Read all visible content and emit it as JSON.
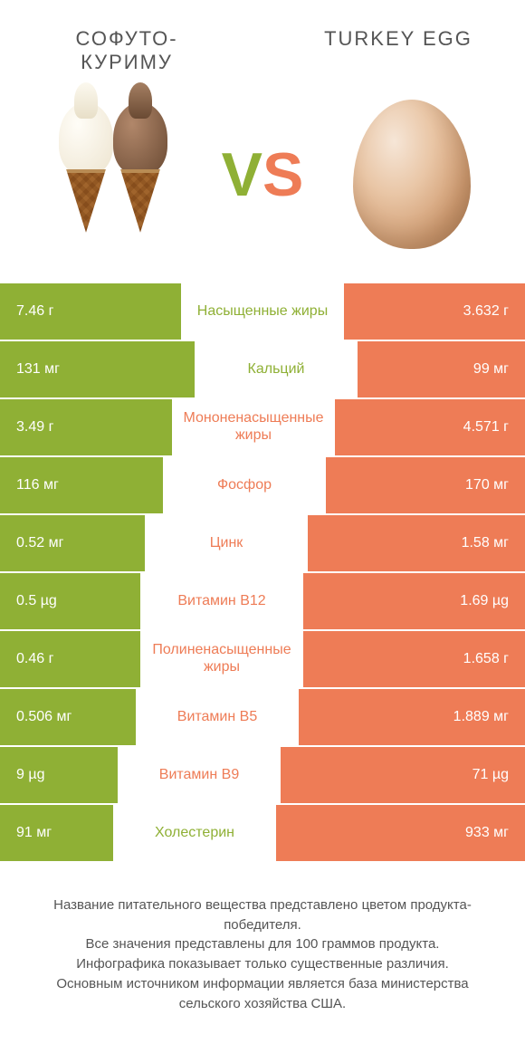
{
  "colors": {
    "left": "#8fb035",
    "right": "#ee7c56",
    "vs_v": "#8fb035",
    "vs_s": "#ee7c56",
    "title": "#555555",
    "footer": "#555555",
    "row_text": "#ffffff"
  },
  "left_product": {
    "title": "СОФУТО-\nКУРИМУ"
  },
  "right_product": {
    "title": "TURKEY EGG"
  },
  "vs": {
    "v": "V",
    "s": "S"
  },
  "bar_ratio_basis": 400,
  "rows": [
    {
      "nutrient": "Насыщенные жиры",
      "winner": "left",
      "left_val": "7.46 г",
      "right_val": "3.632 г",
      "left_w": 200,
      "right_w": 200
    },
    {
      "nutrient": "Кальций",
      "winner": "left",
      "left_val": "131 мг",
      "right_val": "99 мг",
      "left_w": 215,
      "right_w": 185
    },
    {
      "nutrient": "Мононенасыщенные жиры",
      "winner": "right",
      "left_val": "3.49 г",
      "right_val": "4.571 г",
      "left_w": 190,
      "right_w": 210
    },
    {
      "nutrient": "Фосфор",
      "winner": "right",
      "left_val": "116 мг",
      "right_val": "170 мг",
      "left_w": 180,
      "right_w": 220
    },
    {
      "nutrient": "Цинк",
      "winner": "right",
      "left_val": "0.52 мг",
      "right_val": "1.58 мг",
      "left_w": 160,
      "right_w": 240
    },
    {
      "nutrient": "Витамин B12",
      "winner": "right",
      "left_val": "0.5 µg",
      "right_val": "1.69 µg",
      "left_w": 155,
      "right_w": 245
    },
    {
      "nutrient": "Полиненасыщенные жиры",
      "winner": "right",
      "left_val": "0.46 г",
      "right_val": "1.658 г",
      "left_w": 155,
      "right_w": 245
    },
    {
      "nutrient": "Витамин B5",
      "winner": "right",
      "left_val": "0.506 мг",
      "right_val": "1.889 мг",
      "left_w": 150,
      "right_w": 250
    },
    {
      "nutrient": "Витамин B9",
      "winner": "right",
      "left_val": "9 µg",
      "right_val": "71 µg",
      "left_w": 130,
      "right_w": 270
    },
    {
      "nutrient": "Холестерин",
      "winner": "left",
      "left_val": "91 мг",
      "right_val": "933 мг",
      "left_w": 125,
      "right_w": 275
    }
  ],
  "footer": "Название питательного вещества представлено цветом продукта-победителя.\nВсе значения представлены для 100 граммов продукта.\nИнфографика показывает только существенные различия.\nОсновным источником информации является база министерства сельского хозяйства США."
}
